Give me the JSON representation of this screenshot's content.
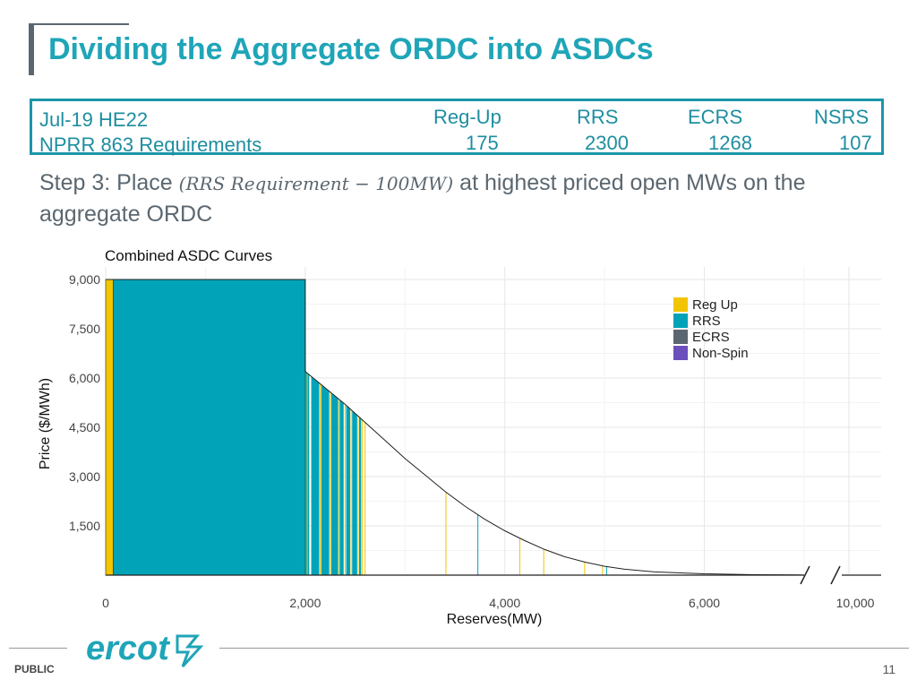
{
  "slide": {
    "title": "Dividing the Aggregate ORDC into ASDCs",
    "footer_label": "PUBLIC",
    "page_number": "11",
    "logo_text": "ercot"
  },
  "requirements": {
    "period_label": "Jul-19 HE22",
    "nprr_label": "NPRR 863 Requirements",
    "items": [
      {
        "name": "Reg-Up",
        "value": "175"
      },
      {
        "name": "RRS",
        "value": "2300"
      },
      {
        "name": "ECRS",
        "value": "1268"
      },
      {
        "name": "NSRS",
        "value": "107"
      }
    ]
  },
  "step": {
    "prefix": "Step 3:  Place ",
    "formula": "(RRS Requirement  − 100MW)",
    "suffix": " at highest priced open MWs on the aggregate ORDC"
  },
  "colors": {
    "accent": "#1fa5b8",
    "reg_up": "#f2c500",
    "rrs": "#00a3b8",
    "ecrs": "#5b6770",
    "non_spin": "#6b4fbb"
  },
  "chart_data": {
    "type": "area",
    "title": "Combined ASDC Curves",
    "xlabel": "Reserves(MW)",
    "ylabel": "Price ($/MWh)",
    "xlim": [
      0,
      7000
    ],
    "broken_axis_label_value": 10000,
    "ylim": [
      0,
      9000
    ],
    "x_ticks": [
      0,
      2000,
      4000,
      6000
    ],
    "x_tick_labels": [
      "0",
      "2,000",
      "4,000",
      "6,000"
    ],
    "x_break_tick_label": "10,000",
    "y_ticks": [
      1500,
      3000,
      4500,
      6000,
      7500,
      9000
    ],
    "y_tick_labels": [
      "1,500",
      "3,000",
      "4,500",
      "6,000",
      "7,500",
      "9,000"
    ],
    "grid": true,
    "legend_position": "top-right",
    "legend": [
      {
        "name": "Reg Up",
        "color": "#f2c500"
      },
      {
        "name": "RRS",
        "color": "#00a3b8"
      },
      {
        "name": "ECRS",
        "color": "#5b6770"
      },
      {
        "name": "Non-Spin",
        "color": "#6b4fbb"
      }
    ],
    "aggregate_curve": [
      {
        "x": 0,
        "y": 9000
      },
      {
        "x": 2000,
        "y": 9000
      },
      {
        "x": 2000,
        "y": 6200
      },
      {
        "x": 2200,
        "y": 5700
      },
      {
        "x": 2400,
        "y": 5200
      },
      {
        "x": 2600,
        "y": 4650
      },
      {
        "x": 2800,
        "y": 4100
      },
      {
        "x": 3000,
        "y": 3550
      },
      {
        "x": 3200,
        "y": 3050
      },
      {
        "x": 3400,
        "y": 2550
      },
      {
        "x": 3600,
        "y": 2100
      },
      {
        "x": 3800,
        "y": 1700
      },
      {
        "x": 4000,
        "y": 1350
      },
      {
        "x": 4200,
        "y": 1050
      },
      {
        "x": 4400,
        "y": 780
      },
      {
        "x": 4600,
        "y": 560
      },
      {
        "x": 4800,
        "y": 400
      },
      {
        "x": 5000,
        "y": 270
      },
      {
        "x": 5200,
        "y": 180
      },
      {
        "x": 5500,
        "y": 100
      },
      {
        "x": 6000,
        "y": 40
      },
      {
        "x": 6500,
        "y": 15
      },
      {
        "x": 7000,
        "y": 5
      }
    ],
    "blocks": [
      {
        "service": "Reg Up",
        "x0": 0,
        "x1": 75,
        "y": 9000
      },
      {
        "service": "RRS",
        "x0": 75,
        "x1": 2000,
        "y": 9000
      }
    ],
    "rrs_slices": [
      {
        "x0": 2000,
        "x1": 2040
      },
      {
        "x0": 2060,
        "x1": 2140
      },
      {
        "x0": 2160,
        "x1": 2240
      },
      {
        "x0": 2260,
        "x1": 2330
      },
      {
        "x0": 2345,
        "x1": 2385
      },
      {
        "x0": 2410,
        "x1": 2450
      },
      {
        "x0": 2470,
        "x1": 2520
      },
      {
        "x0": 2540,
        "x1": 2560
      }
    ],
    "reg_up_lines": [
      2020,
      2150,
      2250,
      2340,
      2400,
      2460,
      2530,
      2570,
      2600,
      3410,
      4150,
      4390,
      4800,
      4980
    ],
    "rrs_lines": [
      3730,
      5020
    ]
  }
}
